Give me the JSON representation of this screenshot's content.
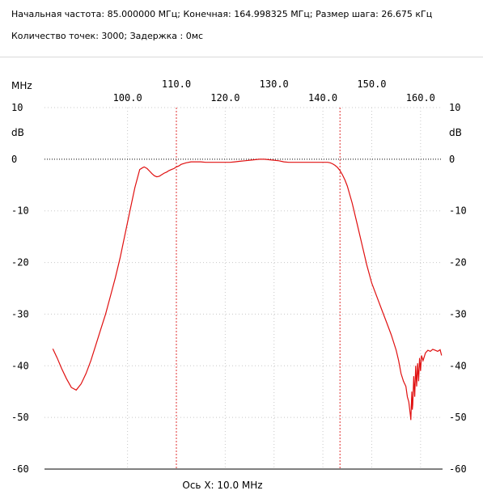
{
  "header": {
    "line1": "Начальная частота: 85.000000 МГц; Конечная: 164.998325 МГц; Размер шага: 26.675 кГц",
    "line2": "Количество точек: 3000; Задержка :   0мс"
  },
  "chart_data": {
    "type": "line",
    "xlabel": "Ось X: 10.0 MHz",
    "x_unit_label": "MHz",
    "y_unit_label": "dB",
    "xlim": [
      83.0,
      164.5
    ],
    "ylim": [
      -60,
      10
    ],
    "x_ticks_upper": [
      110.0,
      130.0,
      150.0
    ],
    "x_ticks_lower": [
      100.0,
      120.0,
      140.0,
      160.0
    ],
    "y_ticks": [
      10,
      0,
      -10,
      -20,
      -30,
      -40,
      -50,
      -60
    ],
    "grid": true,
    "markers_x": [
      110.0,
      143.5
    ],
    "colors": {
      "trace": "#e01010",
      "marker": "#e03030",
      "grid": "#c8c8c8",
      "axis": "#000000"
    },
    "series": [
      {
        "x": [
          84.7,
          85.6,
          86.5,
          87.5,
          88.5,
          89.5,
          90.5,
          91.5,
          92.5,
          93.5,
          94.5,
          95.5,
          96.5,
          97.5,
          98.5,
          99.5,
          100.5,
          101.5,
          102.5,
          103.0,
          103.4,
          104.0,
          104.5,
          105.0,
          105.5,
          106.0,
          106.5,
          107.0,
          107.5,
          108.0,
          108.5,
          109.0,
          109.5,
          110.0,
          110.5,
          111.0,
          112.0,
          113.0,
          114.0,
          115.0,
          116.0,
          117.0,
          118.0,
          119.0,
          120.0,
          121.0,
          122.0,
          123.0,
          124.0,
          125.0,
          126.0,
          127.0,
          128.0,
          129.0,
          130.0,
          131.0,
          132.0,
          133.0,
          134.0,
          135.0,
          136.0,
          137.0,
          138.0,
          139.0,
          140.0,
          141.0,
          141.5,
          142.0,
          142.5,
          143.0,
          143.5,
          144.0,
          144.5,
          145.0,
          146.0,
          147.0,
          148.0,
          149.0,
          150.0,
          151.0,
          152.0,
          153.0,
          154.0,
          155.0,
          155.5,
          156.0,
          156.5,
          157.0,
          157.3,
          157.6,
          157.9,
          158.0,
          158.2,
          158.3,
          158.4,
          158.6,
          158.8,
          159.0,
          159.2,
          159.4,
          159.6,
          159.8,
          160.0,
          160.2,
          160.5,
          161.0,
          161.5,
          162.0,
          162.5,
          163.0,
          163.5,
          164.0,
          164.3
        ],
        "y": [
          -36.7,
          -38.5,
          -40.5,
          -42.5,
          -44.2,
          -44.7,
          -43.5,
          -41.5,
          -39.0,
          -36.0,
          -33.0,
          -30.0,
          -26.5,
          -23.0,
          -19.0,
          -14.5,
          -10.0,
          -5.5,
          -2.0,
          -1.7,
          -1.5,
          -1.8,
          -2.3,
          -2.8,
          -3.2,
          -3.4,
          -3.3,
          -3.0,
          -2.7,
          -2.5,
          -2.2,
          -2.0,
          -1.8,
          -1.5,
          -1.3,
          -1.0,
          -0.7,
          -0.5,
          -0.5,
          -0.5,
          -0.6,
          -0.6,
          -0.6,
          -0.6,
          -0.6,
          -0.6,
          -0.5,
          -0.4,
          -0.3,
          -0.2,
          -0.1,
          0.0,
          0.0,
          -0.1,
          -0.2,
          -0.3,
          -0.5,
          -0.6,
          -0.6,
          -0.6,
          -0.6,
          -0.6,
          -0.6,
          -0.6,
          -0.6,
          -0.6,
          -0.7,
          -0.9,
          -1.2,
          -1.6,
          -2.2,
          -3.0,
          -4.0,
          -5.2,
          -8.5,
          -12.5,
          -16.5,
          -20.5,
          -24.0,
          -26.5,
          -29.0,
          -31.5,
          -34.0,
          -37.0,
          -39.0,
          -41.5,
          -43.0,
          -44.0,
          -46.0,
          -47.0,
          -49.5,
          -50.5,
          -45.0,
          -48.5,
          -47.5,
          -42.0,
          -46.0,
          -40.0,
          -44.0,
          -39.5,
          -43.0,
          -38.5,
          -41.0,
          -38.0,
          -39.0,
          -37.5,
          -37.0,
          -37.2,
          -36.8,
          -37.0,
          -37.2,
          -36.9,
          -38.0
        ]
      }
    ]
  }
}
